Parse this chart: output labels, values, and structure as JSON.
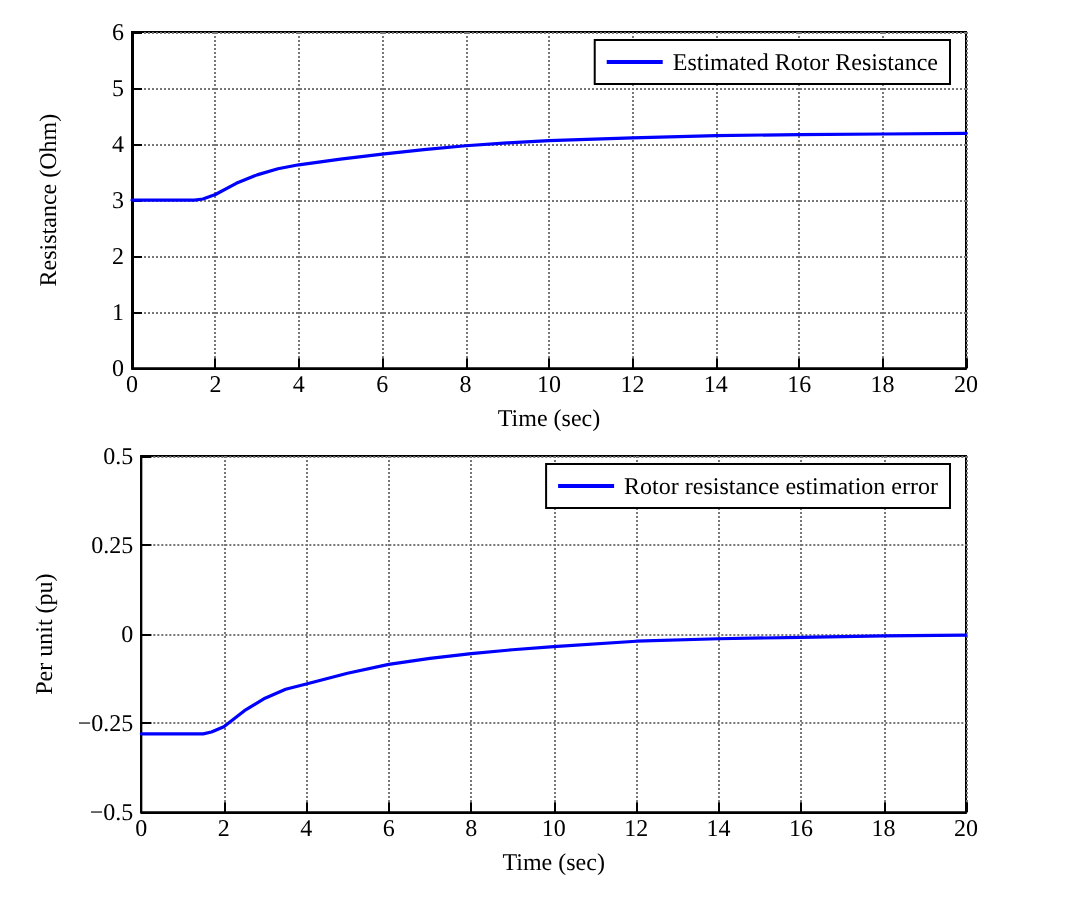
{
  "chart_data": [
    {
      "type": "line",
      "xlabel": "Time (sec)",
      "ylabel": "Resistance (Ohm)",
      "x": [
        0,
        1,
        1.5,
        1.7,
        2,
        2.5,
        3,
        3.5,
        4,
        5,
        6,
        7,
        8,
        9,
        10,
        12,
        14,
        16,
        18,
        20
      ],
      "series": [
        {
          "name": "Estimated Rotor Resistance",
          "color": "#0000ff",
          "values": [
            3,
            3,
            3,
            3.02,
            3.1,
            3.3,
            3.45,
            3.56,
            3.63,
            3.73,
            3.82,
            3.9,
            3.97,
            4.02,
            4.06,
            4.11,
            4.15,
            4.17,
            4.18,
            4.19
          ]
        }
      ],
      "xlim": [
        0,
        20
      ],
      "xticks": [
        0,
        2,
        4,
        6,
        8,
        10,
        12,
        14,
        16,
        18,
        20
      ],
      "ylim": [
        0,
        6
      ],
      "yticks": [
        0,
        1,
        2,
        3,
        4,
        5,
        6
      ],
      "grid": true,
      "legend": "top right",
      "marker": "none",
      "line_style": "solid"
    },
    {
      "type": "line",
      "xlabel": "Time (sec)",
      "ylabel": "Per unit (pu)",
      "x": [
        0,
        1,
        1.5,
        1.7,
        2,
        2.5,
        3,
        3.5,
        4,
        5,
        6,
        7,
        8,
        9,
        10,
        12,
        14,
        16,
        18,
        20
      ],
      "series": [
        {
          "name": "Rotor resistance estimation error",
          "color": "#0000ff",
          "values": [
            -0.28,
            -0.28,
            -0.28,
            -0.275,
            -0.26,
            -0.215,
            -0.18,
            -0.155,
            -0.14,
            -0.11,
            -0.085,
            -0.068,
            -0.055,
            -0.044,
            -0.035,
            -0.02,
            -0.013,
            -0.009,
            -0.005,
            -0.003
          ]
        }
      ],
      "xlim": [
        0,
        20
      ],
      "xticks": [
        0,
        2,
        4,
        6,
        8,
        10,
        12,
        14,
        16,
        18,
        20
      ],
      "ylim": [
        -0.5,
        0.5
      ],
      "yticks": [
        {
          "value": -0.5,
          "label": "−0.5"
        },
        {
          "value": -0.25,
          "label": "−0.25"
        },
        0,
        0.25,
        0.5
      ],
      "grid": true,
      "legend": "top right",
      "marker": "none",
      "line_style": "solid"
    }
  ]
}
